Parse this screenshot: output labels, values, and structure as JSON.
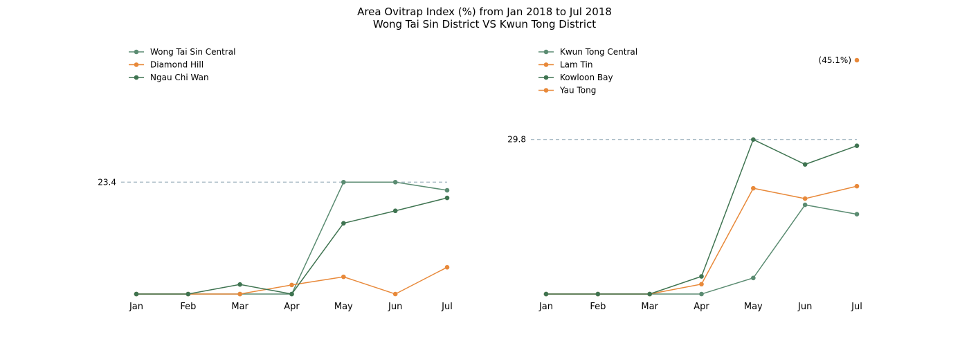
{
  "figure": {
    "title_line1": "Area Ovitrap Index (%) from Jan 2018 to Jul 2018",
    "title_line2": "Wong Tai Sin District VS Kwun Tong District"
  },
  "chart_data": [
    {
      "type": "line",
      "categories": [
        "Jan",
        "Feb",
        "Mar",
        "Apr",
        "May",
        "Jun",
        "Jul"
      ],
      "ylim": [
        0,
        34
      ],
      "grid": false,
      "legend": "top-left",
      "reference": {
        "value": 23.4,
        "label": "23.4"
      },
      "series": [
        {
          "name": "Wong Tai Sin Central",
          "color": "#5b8c72",
          "values": [
            0,
            0,
            0,
            0,
            23.4,
            23.4,
            21.7
          ]
        },
        {
          "name": "Diamond Hill",
          "color": "#e8893a",
          "values": [
            0,
            0,
            0,
            1.9,
            3.6,
            0,
            5.6
          ]
        },
        {
          "name": "Ngau Chi Wan",
          "color": "#3f7451",
          "values": [
            0,
            0,
            2.0,
            0,
            14.8,
            17.4,
            20.1
          ]
        }
      ]
    },
    {
      "type": "line",
      "categories": [
        "Jan",
        "Feb",
        "Mar",
        "Apr",
        "May",
        "Jun",
        "Jul"
      ],
      "ylim": [
        0,
        45.1
      ],
      "grid": false,
      "legend": "top-left",
      "reference": {
        "value": 29.8,
        "label": "29.8"
      },
      "annotation": {
        "series": "Yau Tong",
        "category": "Jul",
        "value": 45.1,
        "label": "(45.1%)"
      },
      "series": [
        {
          "name": "Kwun Tong Central",
          "color": "#5b8c72",
          "values": [
            0,
            0,
            0,
            0,
            3.1,
            17.2,
            15.4
          ]
        },
        {
          "name": "Lam Tin",
          "color": "#e8893a",
          "values": [
            0,
            0,
            0,
            1.9,
            20.4,
            18.4,
            20.8
          ]
        },
        {
          "name": "Kowloon Bay",
          "color": "#3f7451",
          "values": [
            0,
            0,
            0,
            3.4,
            29.8,
            25.0,
            28.6
          ]
        },
        {
          "name": "Yau Tong",
          "color": "#e8893a",
          "values": [
            null,
            null,
            null,
            null,
            null,
            null,
            45.1
          ]
        }
      ]
    }
  ]
}
